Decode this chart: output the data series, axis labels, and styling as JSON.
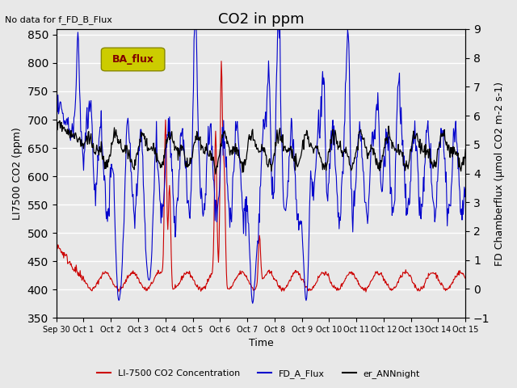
{
  "title": "CO2 in ppm",
  "top_left_text": "No data for f_FD_B_Flux",
  "legend_box_text": "BA_flux",
  "xlabel": "Time",
  "ylabel_left": "LI7500 CO2 (ppm)",
  "ylabel_right": "FD Chamberflux (μmol CO2 m-2 s-1)",
  "ylim_left": [
    350,
    860
  ],
  "ylim_right": [
    -1.0,
    9.0
  ],
  "yticks_left": [
    350,
    400,
    450,
    500,
    550,
    600,
    650,
    700,
    750,
    800,
    850
  ],
  "yticks_right": [
    -1.0,
    0.0,
    1.0,
    2.0,
    3.0,
    4.0,
    5.0,
    6.0,
    7.0,
    8.0,
    9.0
  ],
  "background_color": "#e8e8e8",
  "plot_bg_color": "#e8e8e8",
  "line_red": "#cc0000",
  "line_blue": "#0000cc",
  "line_black": "#000000",
  "legend_labels": [
    "LI-7500 CO2 Concentration",
    "FD_A_Flux",
    "er_ANNnight"
  ],
  "legend_colors": [
    "#cc0000",
    "#0000cc",
    "#000000"
  ],
  "xtick_labels": [
    "Sep 30",
    "Oct 1",
    "Oct 2",
    "Oct 3",
    "Oct 4",
    "Oct 5",
    "Oct 6",
    "Oct 7",
    "Oct 8",
    "Oct 9",
    "Oct 10",
    "Oct 11",
    "Oct 12",
    "Oct 13",
    "Oct 14",
    "Oct 15"
  ],
  "xtick_positions": [
    0,
    1,
    2,
    3,
    4,
    5,
    6,
    7,
    8,
    9,
    10,
    11,
    12,
    13,
    14,
    15
  ],
  "grid_color": "white",
  "title_fontsize": 13,
  "axis_fontsize": 9,
  "legend_box_color": "#cccc00",
  "legend_box_text_color": "#800000",
  "n_days": 15,
  "pts_per_day": 48
}
